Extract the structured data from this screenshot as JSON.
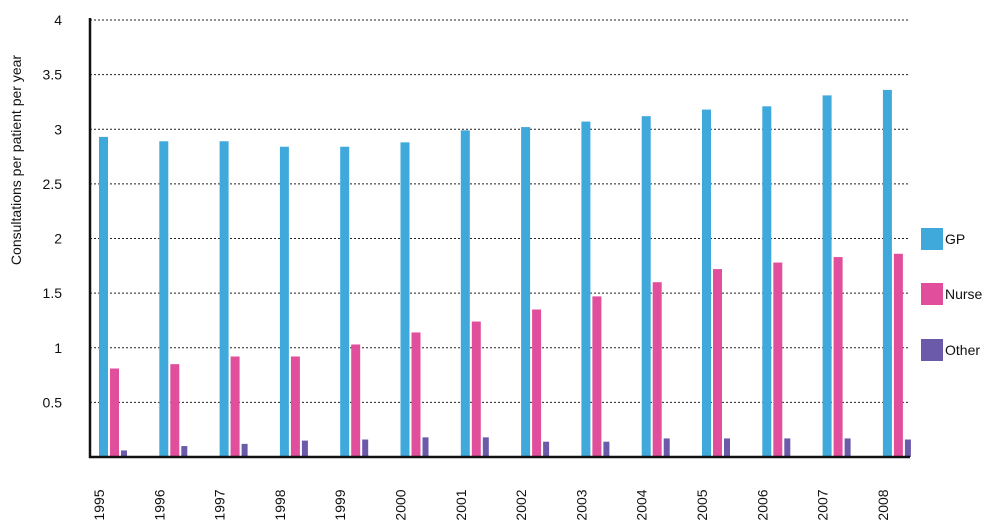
{
  "chart_data": {
    "type": "bar",
    "ylabel": "Consultations per patient per year",
    "ylim": [
      0,
      4
    ],
    "yticks": [
      "0.5",
      "1",
      "1.5",
      "2",
      "2.5",
      "3",
      "3.5",
      "4"
    ],
    "grid": true,
    "legend_position": "right",
    "categories": [
      "1995",
      "1996",
      "1997",
      "1998",
      "1999",
      "2000",
      "2001",
      "2002",
      "2003",
      "2004",
      "2005",
      "2006",
      "2007",
      "2008"
    ],
    "series": [
      {
        "name": "GP",
        "color": "#3fa9dc",
        "values": [
          2.93,
          2.89,
          2.89,
          2.84,
          2.84,
          2.88,
          2.99,
          3.02,
          3.07,
          3.12,
          3.18,
          3.21,
          3.31,
          3.36
        ]
      },
      {
        "name": "Nurse",
        "color": "#e14f9c",
        "values": [
          0.81,
          0.85,
          0.92,
          0.92,
          1.03,
          1.14,
          1.24,
          1.35,
          1.47,
          1.6,
          1.72,
          1.78,
          1.83,
          1.86
        ]
      },
      {
        "name": "Other",
        "color": "#6a5aa9",
        "values": [
          0.06,
          0.1,
          0.12,
          0.15,
          0.16,
          0.18,
          0.18,
          0.14,
          0.14,
          0.17,
          0.17,
          0.17,
          0.17,
          0.16
        ]
      }
    ]
  }
}
